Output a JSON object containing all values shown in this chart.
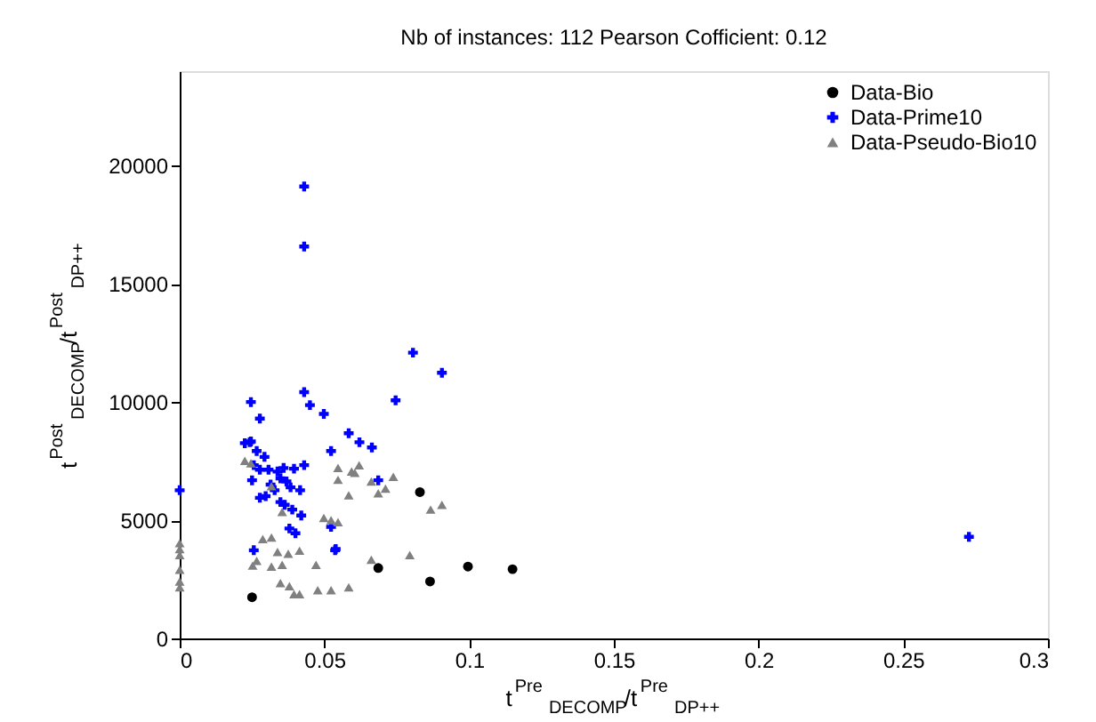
{
  "chart_data": {
    "type": "scatter",
    "title": "Nb of instances: 112      Pearson Cofficient: 0.12",
    "xlabel": "t$^{Pre}$$_{DECOMP}$/t$^{Pre}$$_{DP++}$",
    "ylabel": "t$^{Post}$$_{DECOMP}$/t$^{Post}$$_{DP++}$",
    "xlim": [
      0,
      0.3
    ],
    "xticks": [
      0,
      0.05,
      0.1,
      0.15,
      0.2,
      0.25,
      0.3
    ],
    "ylim": [
      0,
      24000
    ],
    "yticks": [
      0,
      5000,
      10000,
      15000,
      20000
    ],
    "grid": false,
    "legend": "top right",
    "series": [
      {
        "name": "Data-Bio",
        "color": "#000000",
        "marker": "circle",
        "x": [
          0.025,
          0.083,
          0.0686,
          0.0865,
          0.0996,
          0.115
        ],
        "values": [
          1740,
          6190,
          2980,
          2410,
          3040,
          2930
        ]
      },
      {
        "name": "Data-Prime10",
        "color": "#0000ff",
        "marker": "cross",
        "x": [
          0.043,
          0.043,
          0.0246,
          0.043,
          0.045,
          0.0498,
          0.0277,
          0.0584,
          0.0242,
          0.0806,
          0.0906,
          0.0746,
          0.0621,
          0.0664,
          0.0523,
          0.0686,
          0.0523,
          0.0537,
          0,
          0.0225,
          0.0246,
          0.0266,
          0.0293,
          0.0256,
          0.0277,
          0.025,
          0.0307,
          0.0338,
          0.0359,
          0.0395,
          0.043,
          0.0348,
          0.0369,
          0.0314,
          0.0328,
          0.0383,
          0.0416,
          0.0277,
          0.0297,
          0.0348,
          0.0363,
          0.0389,
          0.042,
          0.0379,
          0.04,
          0.0539,
          0.0256,
          0.2727
        ],
        "values": [
          19120,
          16580,
          10000,
          10420,
          9870,
          9500,
          9300,
          8680,
          8300,
          12090,
          11240,
          10070,
          8300,
          8080,
          7930,
          6690,
          4720,
          3730,
          6270,
          8260,
          8330,
          7930,
          7680,
          7330,
          7140,
          6690,
          7140,
          7060,
          7210,
          7180,
          7330,
          6770,
          6640,
          6510,
          6270,
          6390,
          6270,
          5950,
          6020,
          5770,
          5650,
          5450,
          5200,
          4650,
          4450,
          3780,
          3730,
          4300
        ]
      },
      {
        "name": "Data-Pseudo-Bio10",
        "color": "#808080",
        "marker": "triangle",
        "x": [
          0.0225,
          0.0246,
          0.0547,
          0.0594,
          0.0547,
          0.0584,
          0.0317,
          0.0498,
          0.0523,
          0.0547,
          0.0354,
          0.0317,
          0.0287,
          0.0338,
          0.0375,
          0.0414,
          0.0266,
          0.0252,
          0.0317,
          0.0354,
          0.0471,
          0.0348,
          0.0379,
          0.0395,
          0.0414,
          0.0477,
          0.0523,
          0.0584,
          0,
          0,
          0,
          0,
          0,
          0,
          0.062,
          0.0605,
          0.0738,
          0.0662,
          0.0711,
          0.0686,
          0.0867,
          0.0906,
          0.0662,
          0.0795
        ],
        "values": [
          7510,
          7410,
          7210,
          7060,
          6710,
          6060,
          6440,
          5100,
          5000,
          4920,
          5350,
          4270,
          4200,
          3660,
          3580,
          3710,
          3280,
          3080,
          3040,
          3110,
          3110,
          2340,
          2210,
          1870,
          1870,
          2040,
          2040,
          2160,
          4030,
          3780,
          3530,
          2910,
          2410,
          2160,
          7330,
          7010,
          6840,
          6640,
          6340,
          6140,
          5450,
          5650,
          3330,
          3530
        ]
      }
    ]
  }
}
